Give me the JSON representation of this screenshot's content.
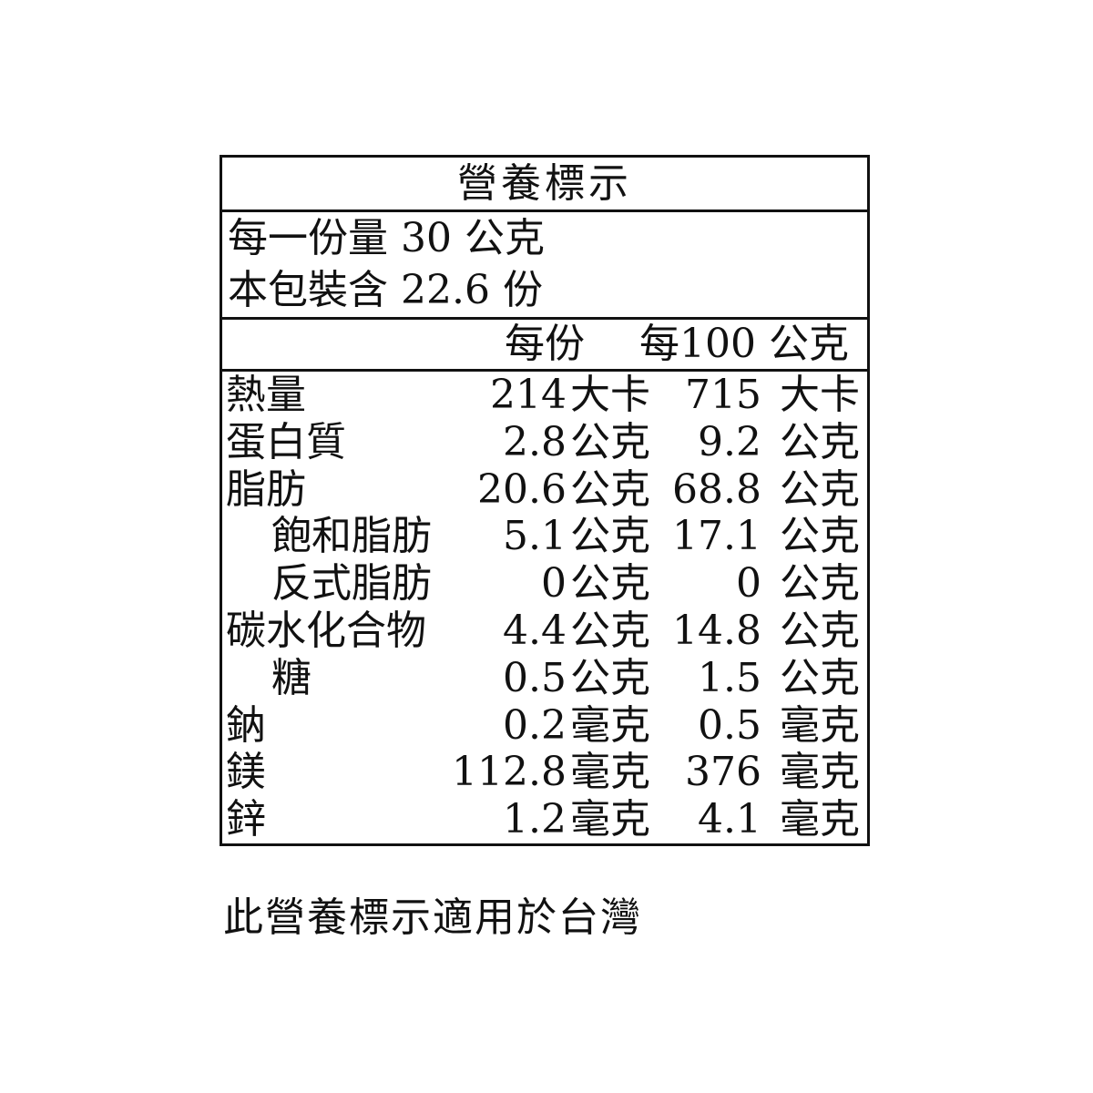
{
  "title": "營養標示",
  "serving": {
    "size": "每一份量 30 公克",
    "count": "本包裝含 22.6 份"
  },
  "header": {
    "per_serving": "每份",
    "per_100g": "每100 公克"
  },
  "rows": [
    {
      "name": "熱量",
      "indent": false,
      "v1": "214",
      "u1": "大卡",
      "v2": "715",
      "u2": "大卡"
    },
    {
      "name": "蛋白質",
      "indent": false,
      "v1": "2.8",
      "u1": "公克",
      "v2": "9.2",
      "u2": "公克"
    },
    {
      "name": "脂肪",
      "indent": false,
      "v1": "20.6",
      "u1": "公克",
      "v2": "68.8",
      "u2": "公克"
    },
    {
      "name": "飽和脂肪",
      "indent": true,
      "v1": "5.1",
      "u1": "公克",
      "v2": "17.1",
      "u2": "公克"
    },
    {
      "name": "反式脂肪",
      "indent": true,
      "v1": "0",
      "u1": "公克",
      "v2": "0",
      "u2": "公克"
    },
    {
      "name": "碳水化合物",
      "indent": false,
      "v1": "4.4",
      "u1": "公克",
      "v2": "14.8",
      "u2": "公克"
    },
    {
      "name": "糖",
      "indent": true,
      "v1": "0.5",
      "u1": "公克",
      "v2": "1.5",
      "u2": "公克"
    },
    {
      "name": "鈉",
      "indent": false,
      "v1": "0.2",
      "u1": "毫克",
      "v2": "0.5",
      "u2": "毫克"
    },
    {
      "name": "鎂",
      "indent": false,
      "v1": "112.8",
      "u1": "毫克",
      "v2": "376",
      "u2": "毫克"
    },
    {
      "name": "鋅",
      "indent": false,
      "v1": "1.2",
      "u1": "毫克",
      "v2": "4.1",
      "u2": "毫克"
    }
  ],
  "footer": "此營養標示適用於台灣"
}
